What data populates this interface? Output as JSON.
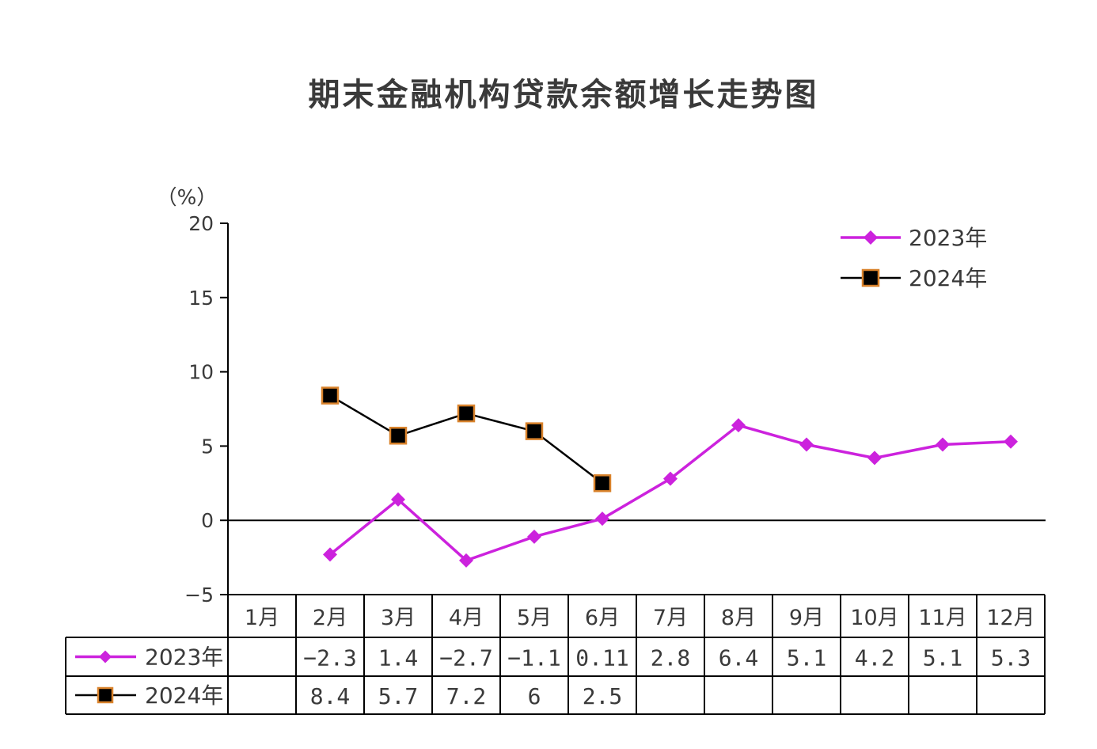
{
  "chart_data": {
    "type": "line",
    "title": "期末金融机构贷款余额增长走势图",
    "ylabel": "（%）",
    "ylim": [
      -5,
      20
    ],
    "yticks": [
      "20",
      "15",
      "10",
      "5",
      "0",
      "−5"
    ],
    "ytick_values": [
      20,
      15,
      10,
      5,
      0,
      -5
    ],
    "categories": [
      "1月",
      "2月",
      "3月",
      "4月",
      "5月",
      "6月",
      "7月",
      "8月",
      "9月",
      "10月",
      "11月",
      "12月"
    ],
    "legend_position": "top-right",
    "grid": false,
    "series": [
      {
        "name": "2023年",
        "color": "#cc22dd",
        "marker": "diamond",
        "values": [
          null,
          -2.3,
          1.4,
          -2.7,
          -1.1,
          0.11,
          2.8,
          6.4,
          5.1,
          4.2,
          5.1,
          5.3
        ],
        "labels": [
          "",
          "−2.3",
          "1.4",
          "−2.7",
          "−1.1",
          "0.11",
          "2.8",
          "6.4",
          "5.1",
          "4.2",
          "5.1",
          "5.3"
        ]
      },
      {
        "name": "2024年",
        "color": "#000000",
        "marker_fill": "#000000",
        "marker_edge": "#d9822b",
        "marker": "square",
        "values": [
          null,
          8.4,
          5.7,
          7.2,
          6,
          2.5,
          null,
          null,
          null,
          null,
          null,
          null
        ],
        "labels": [
          "",
          "8.4",
          "5.7",
          "7.2",
          "6",
          "2.5",
          "",
          "",
          "",
          "",
          "",
          ""
        ]
      }
    ]
  }
}
